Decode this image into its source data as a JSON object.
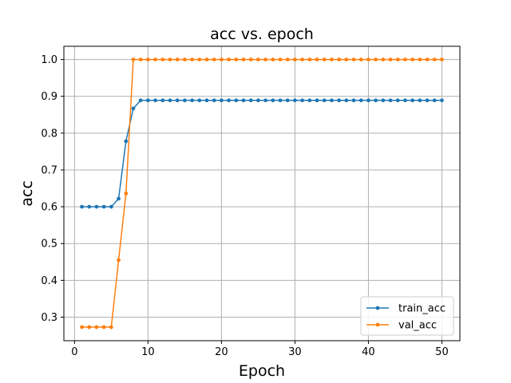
{
  "chart_data": {
    "type": "line",
    "title": "acc vs. epoch",
    "xlabel": "Epoch",
    "ylabel": "acc",
    "xlim": [
      -1.45,
      52.45
    ],
    "ylim": [
      0.236,
      1.036
    ],
    "xticks": [
      0,
      10,
      20,
      30,
      40,
      50
    ],
    "yticks": [
      0.3,
      0.4,
      0.5,
      0.6,
      0.7,
      0.8,
      0.9,
      1.0
    ],
    "ytick_labels": [
      "0.3",
      "0.4",
      "0.5",
      "0.6",
      "0.7",
      "0.8",
      "0.9",
      "1.0"
    ],
    "grid": true,
    "legend_position": "lower right",
    "x": [
      1,
      2,
      3,
      4,
      5,
      6,
      7,
      8,
      9,
      10,
      11,
      12,
      13,
      14,
      15,
      16,
      17,
      18,
      19,
      20,
      21,
      22,
      23,
      24,
      25,
      26,
      27,
      28,
      29,
      30,
      31,
      32,
      33,
      34,
      35,
      36,
      37,
      38,
      39,
      40,
      41,
      42,
      43,
      44,
      45,
      46,
      47,
      48,
      49,
      50
    ],
    "series": [
      {
        "name": "train_acc",
        "color": "#1f77b4",
        "values": [
          0.6,
          0.6,
          0.6,
          0.6,
          0.6,
          0.622,
          0.778,
          0.867,
          0.889,
          0.889,
          0.889,
          0.889,
          0.889,
          0.889,
          0.889,
          0.889,
          0.889,
          0.889,
          0.889,
          0.889,
          0.889,
          0.889,
          0.889,
          0.889,
          0.889,
          0.889,
          0.889,
          0.889,
          0.889,
          0.889,
          0.889,
          0.889,
          0.889,
          0.889,
          0.889,
          0.889,
          0.889,
          0.889,
          0.889,
          0.889,
          0.889,
          0.889,
          0.889,
          0.889,
          0.889,
          0.889,
          0.889,
          0.889,
          0.889,
          0.889
        ]
      },
      {
        "name": "val_acc",
        "color": "#ff7f0e",
        "values": [
          0.273,
          0.273,
          0.273,
          0.273,
          0.273,
          0.455,
          0.636,
          1.0,
          1.0,
          1.0,
          1.0,
          1.0,
          1.0,
          1.0,
          1.0,
          1.0,
          1.0,
          1.0,
          1.0,
          1.0,
          1.0,
          1.0,
          1.0,
          1.0,
          1.0,
          1.0,
          1.0,
          1.0,
          1.0,
          1.0,
          1.0,
          1.0,
          1.0,
          1.0,
          1.0,
          1.0,
          1.0,
          1.0,
          1.0,
          1.0,
          1.0,
          1.0,
          1.0,
          1.0,
          1.0,
          1.0,
          1.0,
          1.0,
          1.0,
          1.0
        ]
      }
    ]
  }
}
